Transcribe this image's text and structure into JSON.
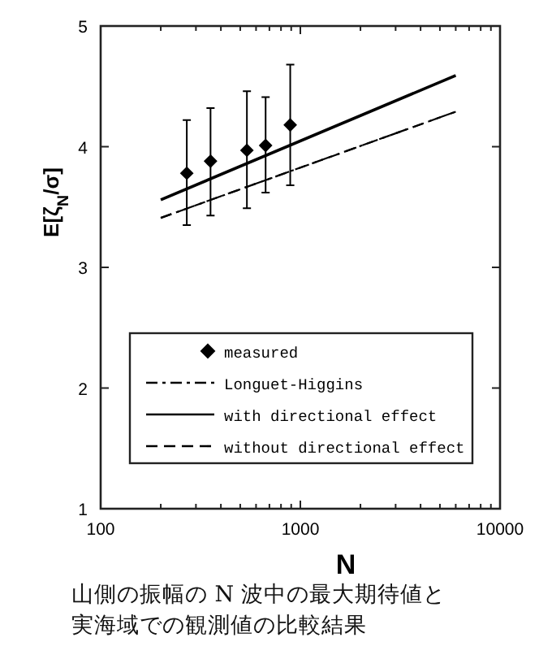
{
  "chart_data": {
    "type": "line",
    "xlabel": "N",
    "ylabel": "E[ζ$_{N}$/σ]",
    "annotations": [
      "山側の振幅の N 波中の最大期待値と実海域での観測値の比較結果"
    ],
    "log": "x",
    "xlim": [
      100,
      10000
    ],
    "ylim": [
      1,
      5
    ],
    "xticks": [
      100,
      {
        "value": 200,
        "label": null
      },
      {
        "value": 300,
        "label": null
      },
      {
        "value": 400,
        "label": null
      },
      {
        "value": 500,
        "label": null
      },
      {
        "value": 600,
        "label": null
      },
      {
        "value": 700,
        "label": null
      },
      {
        "value": 800,
        "label": null
      },
      {
        "value": 900,
        "label": null
      },
      1000,
      {
        "value": 2000,
        "label": null
      },
      {
        "value": 3000,
        "label": null
      },
      {
        "value": 4000,
        "label": null
      },
      {
        "value": 5000,
        "label": null
      },
      {
        "value": 6000,
        "label": null
      },
      {
        "value": 7000,
        "label": null
      },
      {
        "value": 8000,
        "label": null
      },
      {
        "value": 9000,
        "label": null
      },
      10000
    ],
    "yticks": [
      1,
      2,
      3,
      4,
      5
    ],
    "legend": "bottom",
    "grid": false,
    "series": [
      {
        "name": "measured",
        "type": "scatter",
        "marker": "diamond",
        "color": "#000000",
        "x": [
          270,
          355,
          540,
          670,
          890
        ],
        "values": [
          3.78,
          3.88,
          3.97,
          4.01,
          4.18
        ],
        "errors": [
          [
            3.35,
            4.22
          ],
          [
            3.43,
            4.32
          ],
          [
            3.49,
            4.46
          ],
          [
            3.62,
            4.41
          ],
          [
            3.68,
            4.68
          ]
        ]
      },
      {
        "name": "Longuet-Higgins",
        "line_style": "dashdot",
        "color": "#000000",
        "x": [
          200,
          6000
        ],
        "values": [
          3.41,
          4.29
        ]
      },
      {
        "name": "with directional effect",
        "line_style": "solid",
        "color": "#000000",
        "x": [
          200,
          6000
        ],
        "values": [
          3.56,
          4.59
        ]
      },
      {
        "name": "without directional effect",
        "line_style": "dashed",
        "color": "#000000",
        "x": [
          200,
          6000
        ],
        "values": [
          3.41,
          4.29
        ]
      }
    ]
  }
}
